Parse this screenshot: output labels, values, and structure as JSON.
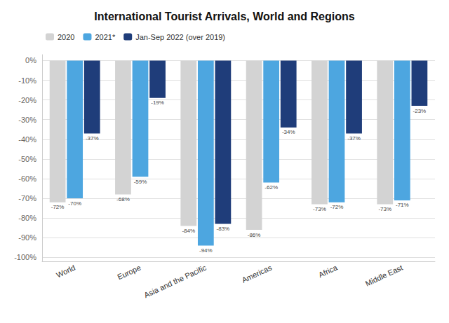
{
  "chart_data": {
    "type": "bar",
    "title": "International Tourist Arrivals, World and Regions",
    "categories": [
      "World",
      "Europe",
      "Asia and the Pacific",
      "Americas",
      "Africa",
      "Middle East"
    ],
    "series": [
      {
        "name": "2020",
        "color": "#d3d3d3",
        "values": [
          -72,
          -68,
          -84,
          -86,
          -73,
          -73
        ],
        "value_labels": [
          "-72%",
          "-68%",
          "-84%",
          "-86%",
          "-73%",
          "-73%"
        ]
      },
      {
        "name": "2021*",
        "color": "#4da6e0",
        "values": [
          -70,
          -59,
          -94,
          -62,
          -72,
          -71
        ],
        "value_labels": [
          "-70%",
          "-59%",
          "-94%",
          "-62%",
          "-72%",
          "-71%"
        ]
      },
      {
        "name": "Jan-Sep 2022 (over 2019)",
        "color": "#1f3d7a",
        "values": [
          -37,
          -19,
          -83,
          -34,
          -37,
          -23
        ],
        "value_labels": [
          "-37%",
          "-19%",
          "-83%",
          "-34%",
          "-37%",
          "-23%"
        ]
      }
    ],
    "ylim": [
      -102,
      3
    ],
    "yticks": [
      {
        "value": 0,
        "label": "0%"
      },
      {
        "value": -10,
        "label": "-10%"
      },
      {
        "value": -20,
        "label": "-20%"
      },
      {
        "value": -30,
        "label": "-30%"
      },
      {
        "value": -40,
        "label": "-40%"
      },
      {
        "value": -50,
        "label": "-50%"
      },
      {
        "value": -60,
        "label": "-60%"
      },
      {
        "value": -70,
        "label": "-70%"
      },
      {
        "value": -80,
        "label": "-80%"
      },
      {
        "value": -90,
        "label": "-90%"
      },
      {
        "value": -100,
        "label": "-100%"
      }
    ],
    "grid": true,
    "legend": "top-left",
    "data_labels": true
  }
}
